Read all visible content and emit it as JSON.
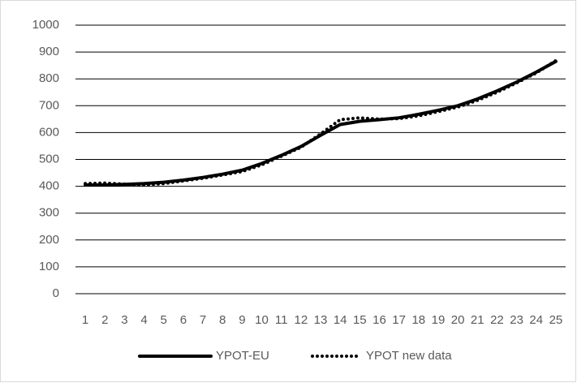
{
  "chart_data": {
    "type": "line",
    "categories": [
      "1",
      "2",
      "3",
      "4",
      "5",
      "6",
      "7",
      "8",
      "9",
      "10",
      "11",
      "12",
      "13",
      "14",
      "15",
      "16",
      "17",
      "18",
      "19",
      "20",
      "21",
      "22",
      "23",
      "24",
      "25"
    ],
    "series": [
      {
        "name": "YPOT-EU",
        "color": "#000000",
        "style": "solid",
        "values": [
          405,
          405,
          407,
          410,
          415,
          423,
          433,
          445,
          460,
          485,
          515,
          548,
          590,
          630,
          642,
          648,
          655,
          668,
          683,
          700,
          725,
          755,
          788,
          825,
          865
        ]
      },
      {
        "name": "YPOT new data",
        "color": "#000000",
        "style": "dotted",
        "values": [
          410,
          412,
          408,
          405,
          410,
          420,
          430,
          442,
          455,
          480,
          512,
          545,
          595,
          648,
          655,
          650,
          652,
          662,
          678,
          695,
          720,
          750,
          785,
          822,
          868
        ]
      }
    ],
    "ylim": [
      0,
      1000
    ],
    "yticks": [
      0,
      100,
      200,
      300,
      400,
      500,
      600,
      700,
      800,
      900,
      1000
    ],
    "grid": true,
    "legend": "bottom"
  }
}
